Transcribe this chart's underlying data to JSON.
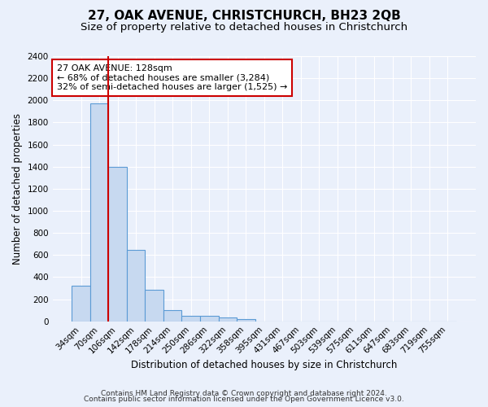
{
  "title": "27, OAK AVENUE, CHRISTCHURCH, BH23 2QB",
  "subtitle": "Size of property relative to detached houses in Christchurch",
  "xlabel": "Distribution of detached houses by size in Christchurch",
  "ylabel": "Number of detached properties",
  "footnote1": "Contains HM Land Registry data © Crown copyright and database right 2024.",
  "footnote2": "Contains public sector information licensed under the Open Government Licence v3.0.",
  "categories": [
    "34sqm",
    "70sqm",
    "106sqm",
    "142sqm",
    "178sqm",
    "214sqm",
    "250sqm",
    "286sqm",
    "322sqm",
    "358sqm",
    "395sqm",
    "431sqm",
    "467sqm",
    "503sqm",
    "539sqm",
    "575sqm",
    "611sqm",
    "647sqm",
    "683sqm",
    "719sqm",
    "755sqm"
  ],
  "values": [
    325,
    1970,
    1400,
    650,
    285,
    100,
    50,
    47,
    35,
    22,
    0,
    0,
    0,
    0,
    0,
    0,
    0,
    0,
    0,
    0,
    0
  ],
  "bar_color": "#c7d9f0",
  "bar_edge_color": "#5b9bd5",
  "vline_x": 1.5,
  "vline_color": "#cc0000",
  "annotation_text": "27 OAK AVENUE: 128sqm\n← 68% of detached houses are smaller (3,284)\n32% of semi-detached houses are larger (1,525) →",
  "annotation_box_color": "#ffffff",
  "annotation_box_edge_color": "#cc0000",
  "ylim": [
    0,
    2400
  ],
  "yticks": [
    0,
    200,
    400,
    600,
    800,
    1000,
    1200,
    1400,
    1600,
    1800,
    2000,
    2200,
    2400
  ],
  "bg_color": "#eaf0fb",
  "plot_bg_color": "#eaf0fb",
  "grid_color": "#ffffff",
  "title_fontsize": 11,
  "subtitle_fontsize": 9.5,
  "axis_label_fontsize": 8.5,
  "tick_fontsize": 7.5,
  "footnote_fontsize": 6.5
}
